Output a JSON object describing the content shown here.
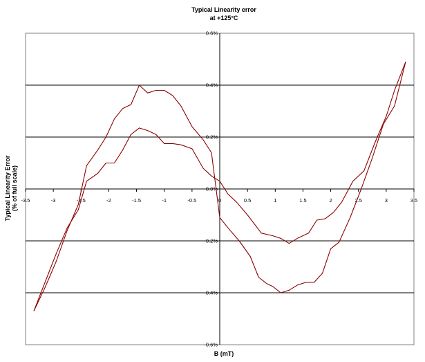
{
  "chart_data": {
    "type": "line",
    "title": "Typical Linearity error",
    "subtitle": "at +125°C",
    "xlabel": "B (mT)",
    "ylabel": "Typical Linearity Error",
    "ylabel2": "(% of full scale)",
    "xlim": [
      -3.5,
      3.5
    ],
    "ylim": [
      -0.6,
      0.6
    ],
    "x_ticks": [
      -3.5,
      -3,
      -2.5,
      -2,
      -1.5,
      -1,
      -0.5,
      0,
      0.5,
      1,
      1.5,
      2,
      2.5,
      3,
      3.5
    ],
    "x_tick_labels": [
      "-3.5",
      "-3",
      "-2.5",
      "-2",
      "-1.5",
      "-1",
      "-0.5",
      "0",
      "0.5",
      "1",
      "1.5",
      "2",
      "2.5",
      "3",
      "3.5"
    ],
    "y_ticks": [
      0.6,
      0.4,
      0.2,
      0.0,
      -0.2,
      -0.4,
      -0.6
    ],
    "y_tick_labels": [
      "0.6%",
      "0.4%",
      "0.2%",
      "0.0%",
      "-0.2%",
      "-0.4%",
      "-0.6%"
    ],
    "grid": "horizontal",
    "line_color": "#8b0000",
    "series": [
      {
        "values_x": [
          -3.35,
          -3.15,
          -2.95,
          -2.75,
          -2.55,
          -2.4,
          -2.2,
          -2.05,
          -1.9,
          -1.75,
          -1.6,
          -1.45,
          -1.3,
          -1.15,
          -1.0,
          -0.85,
          -0.7,
          -0.5,
          -0.3,
          -0.15,
          0.0,
          0.15,
          0.3,
          0.5,
          0.75,
          0.95,
          1.1,
          1.25,
          1.4,
          1.6,
          1.75,
          1.9,
          2.05,
          2.2,
          2.4,
          2.6,
          2.8,
          3.0,
          3.15,
          3.35
        ],
        "values_y": [
          -0.47,
          -0.36,
          -0.25,
          -0.15,
          -0.08,
          0.03,
          0.06,
          0.1,
          0.1,
          0.15,
          0.21,
          0.235,
          0.225,
          0.21,
          0.175,
          0.175,
          0.17,
          0.155,
          0.08,
          0.05,
          0.03,
          -0.02,
          -0.05,
          -0.1,
          -0.17,
          -0.18,
          -0.19,
          -0.21,
          -0.19,
          -0.17,
          -0.12,
          -0.115,
          -0.09,
          -0.05,
          0.03,
          0.07,
          0.18,
          0.28,
          0.38,
          0.49
        ]
      },
      {
        "values_x": [
          -3.35,
          -3.15,
          -2.95,
          -2.75,
          -2.55,
          -2.4,
          -2.2,
          -2.05,
          -1.9,
          -1.75,
          -1.6,
          -1.45,
          -1.3,
          -1.15,
          -1.0,
          -0.85,
          -0.7,
          -0.5,
          -0.3,
          -0.15,
          0.0,
          0.15,
          0.35,
          0.55,
          0.7,
          0.85,
          0.95,
          1.1,
          1.25,
          1.4,
          1.55,
          1.7,
          1.85,
          2.0,
          2.15,
          2.35,
          2.55,
          2.75,
          2.95,
          3.15,
          3.35
        ],
        "values_y": [
          -0.47,
          -0.38,
          -0.28,
          -0.16,
          -0.06,
          0.09,
          0.15,
          0.2,
          0.27,
          0.31,
          0.325,
          0.4,
          0.37,
          0.38,
          0.38,
          0.36,
          0.32,
          0.24,
          0.19,
          0.14,
          -0.11,
          -0.15,
          -0.2,
          -0.26,
          -0.34,
          -0.365,
          -0.375,
          -0.4,
          -0.39,
          -0.37,
          -0.36,
          -0.36,
          -0.325,
          -0.23,
          -0.205,
          -0.11,
          0.0,
          0.12,
          0.25,
          0.32,
          0.49
        ]
      }
    ]
  }
}
